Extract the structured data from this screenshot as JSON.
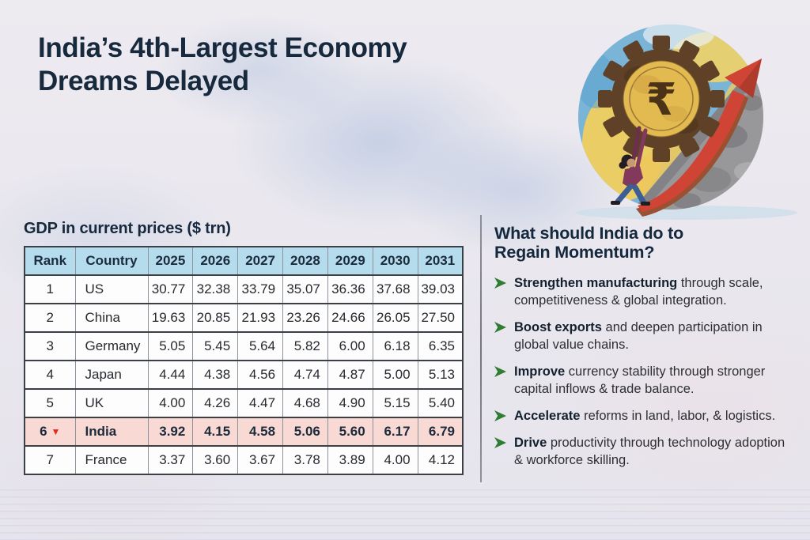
{
  "page": {
    "title_line1": "India’s 4th-Largest Economy",
    "title_line2": "Dreams Delayed"
  },
  "chart_data": {
    "type": "table",
    "title": "GDP in current prices ($ trn)",
    "columns": [
      "Rank",
      "Country",
      "2025",
      "2026",
      "2027",
      "2028",
      "2029",
      "2030",
      "2031"
    ],
    "rows": [
      {
        "rank": "1",
        "country": "US",
        "values": [
          "30.77",
          "32.38",
          "33.79",
          "35.07",
          "36.36",
          "37.68",
          "39.03"
        ],
        "highlight": false
      },
      {
        "rank": "2",
        "country": "China",
        "values": [
          "19.63",
          "20.85",
          "21.93",
          "23.26",
          "24.66",
          "26.05",
          "27.50"
        ],
        "highlight": false
      },
      {
        "rank": "3",
        "country": "Germany",
        "values": [
          "5.05",
          "5.45",
          "5.64",
          "5.82",
          "6.00",
          "6.18",
          "6.35"
        ],
        "highlight": false
      },
      {
        "rank": "4",
        "country": "Japan",
        "values": [
          "4.44",
          "4.38",
          "4.56",
          "4.74",
          "4.87",
          "5.00",
          "5.13"
        ],
        "highlight": false
      },
      {
        "rank": "5",
        "country": "UK",
        "values": [
          "4.00",
          "4.26",
          "4.47",
          "4.68",
          "4.90",
          "5.15",
          "5.40"
        ],
        "highlight": false
      },
      {
        "rank": "6",
        "rank_indicator": "down",
        "country": "India",
        "values": [
          "3.92",
          "4.15",
          "4.58",
          "5.06",
          "5.60",
          "6.17",
          "6.79"
        ],
        "highlight": true
      },
      {
        "rank": "7",
        "country": "France",
        "values": [
          "3.37",
          "3.60",
          "3.67",
          "3.78",
          "3.89",
          "4.00",
          "4.12"
        ],
        "highlight": false
      }
    ]
  },
  "recommendations": {
    "heading_line1": "What should India do to",
    "heading_line2": "Regain Momentum?",
    "items": [
      {
        "bold": "Strengthen manufacturing",
        "text": " through scale, competitiveness & global integration."
      },
      {
        "bold": "Boost exports",
        "text": " and deepen participation in global value chains."
      },
      {
        "bold": "Improve",
        "text": " currency stability through stronger capital inflows & trade balance."
      },
      {
        "bold": "Accelerate",
        "text": " reforms in land, labor, & logistics."
      },
      {
        "bold": "Drive",
        "text": " productivity through technology adoption & workforce skilling."
      }
    ]
  },
  "illustration": {
    "description": "Person pushing a rupee-coin gear up a rocky slope with a rising red arrow",
    "rupee_symbol": "₹"
  },
  "icons": {
    "down_triangle": "▼"
  },
  "colors": {
    "title_navy": "#17293d",
    "header_blue": "#b5dcec",
    "india_pink": "#f9d9d4",
    "bullet_green": "#2e7d32",
    "down_triangle_red": "#e02b20",
    "paper": "#eae8ef"
  }
}
